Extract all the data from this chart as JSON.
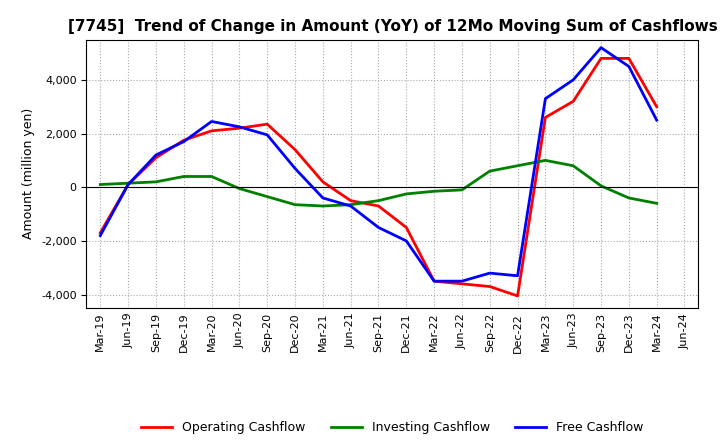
{
  "title": "[7745]  Trend of Change in Amount (YoY) of 12Mo Moving Sum of Cashflows",
  "ylabel": "Amount (million yen)",
  "x_labels": [
    "Mar-19",
    "Jun-19",
    "Sep-19",
    "Dec-19",
    "Mar-20",
    "Jun-20",
    "Sep-20",
    "Dec-20",
    "Mar-21",
    "Jun-21",
    "Sep-21",
    "Dec-21",
    "Mar-22",
    "Jun-22",
    "Sep-22",
    "Dec-22",
    "Mar-23",
    "Jun-23",
    "Sep-23",
    "Dec-23",
    "Mar-24",
    "Jun-24"
  ],
  "operating_cashflow": [
    -1700,
    100,
    1100,
    1750,
    2100,
    2200,
    2350,
    1400,
    200,
    -500,
    -700,
    -1500,
    -3500,
    -3600,
    -3700,
    -4050,
    2600,
    3200,
    4800,
    4800,
    3000,
    null
  ],
  "investing_cashflow": [
    100,
    150,
    200,
    400,
    400,
    -50,
    -350,
    -650,
    -700,
    -650,
    -500,
    -250,
    -150,
    -100,
    600,
    800,
    1000,
    800,
    50,
    -400,
    -600,
    null
  ],
  "free_cashflow": [
    -1800,
    100,
    1200,
    1700,
    2450,
    2250,
    1950,
    700,
    -400,
    -700,
    -1500,
    -2000,
    -3500,
    -3500,
    -3200,
    -3300,
    3300,
    4000,
    5200,
    4500,
    2500,
    null
  ],
  "operating_color": "#ff0000",
  "investing_color": "#008000",
  "free_color": "#0000ff",
  "background_color": "#ffffff",
  "grid_color": "#aaaaaa",
  "ylim": [
    -4500,
    5500
  ],
  "yticks": [
    -4000,
    -2000,
    0,
    2000,
    4000
  ],
  "line_width": 2.0,
  "title_fontsize": 11,
  "ylabel_fontsize": 9,
  "tick_fontsize": 8,
  "legend_fontsize": 9
}
